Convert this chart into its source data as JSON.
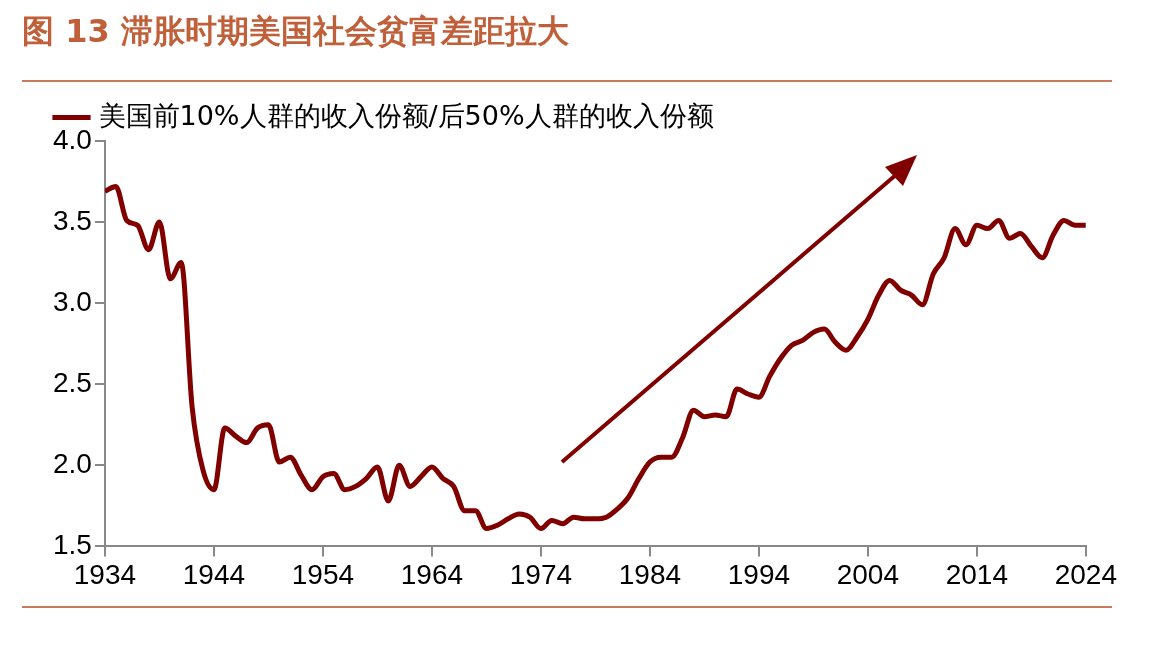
{
  "chart_data": {
    "type": "line",
    "title": "图 13 滞胀时期美国社会贫富差距拉大",
    "x": [
      1934,
      1935,
      1936,
      1937,
      1938,
      1939,
      1940,
      1941,
      1942,
      1943,
      1944,
      1945,
      1946,
      1947,
      1948,
      1949,
      1950,
      1951,
      1952,
      1953,
      1954,
      1955,
      1956,
      1957,
      1958,
      1959,
      1960,
      1961,
      1962,
      1963,
      1964,
      1965,
      1966,
      1967,
      1968,
      1969,
      1970,
      1971,
      1972,
      1973,
      1974,
      1975,
      1976,
      1977,
      1978,
      1979,
      1980,
      1981,
      1982,
      1983,
      1984,
      1985,
      1986,
      1987,
      1988,
      1989,
      1990,
      1991,
      1992,
      1993,
      1994,
      1995,
      1996,
      1997,
      1998,
      1999,
      2000,
      2001,
      2002,
      2003,
      2004,
      2005,
      2006,
      2007,
      2008,
      2009,
      2010,
      2011,
      2012,
      2013,
      2014,
      2015,
      2016,
      2017,
      2018,
      2019,
      2020,
      2021,
      2022,
      2023,
      2024
    ],
    "series": [
      {
        "name": "美国前10%人群的收入份额/后50%人群的收入份额",
        "color": "#800000",
        "values": [
          3.69,
          3.72,
          3.51,
          3.48,
          3.33,
          3.5,
          3.15,
          3.25,
          2.36,
          1.97,
          1.85,
          2.23,
          2.18,
          2.14,
          2.23,
          2.25,
          2.02,
          2.05,
          1.94,
          1.85,
          1.93,
          1.95,
          1.85,
          1.87,
          1.92,
          1.99,
          1.78,
          2.0,
          1.87,
          1.93,
          1.99,
          1.92,
          1.87,
          1.72,
          1.72,
          1.61,
          1.63,
          1.67,
          1.7,
          1.68,
          1.61,
          1.66,
          1.64,
          1.68,
          1.67,
          1.67,
          1.68,
          1.73,
          1.8,
          1.92,
          2.02,
          2.05,
          2.05,
          2.17,
          2.34,
          2.3,
          2.31,
          2.3,
          2.47,
          2.44,
          2.42,
          2.55,
          2.66,
          2.74,
          2.77,
          2.82,
          2.84,
          2.76,
          2.71,
          2.79,
          2.9,
          3.05,
          3.14,
          3.08,
          3.05,
          2.99,
          3.18,
          3.28,
          3.46,
          3.36,
          3.48,
          3.46,
          3.51,
          3.4,
          3.43,
          3.35,
          3.28,
          3.42,
          3.51,
          3.48,
          3.48
        ]
      }
    ],
    "xlim": [
      1934,
      2024
    ],
    "xticks": [
      1934,
      1944,
      1954,
      1964,
      1974,
      1984,
      1994,
      2004,
      2014,
      2024
    ],
    "ylim": [
      1.5,
      4.0
    ],
    "yticks": [
      {
        "value": 1.5,
        "label": "1.5"
      },
      {
        "value": 2,
        "label": "2.0"
      },
      {
        "value": 2.5,
        "label": "2.5"
      },
      {
        "value": 3,
        "label": "3.0"
      },
      {
        "value": 3.5,
        "label": "3.5"
      },
      {
        "value": 4,
        "label": "4.0"
      }
    ],
    "grid": false,
    "legend": "top left",
    "marker": "none",
    "line_style": "solid"
  }
}
